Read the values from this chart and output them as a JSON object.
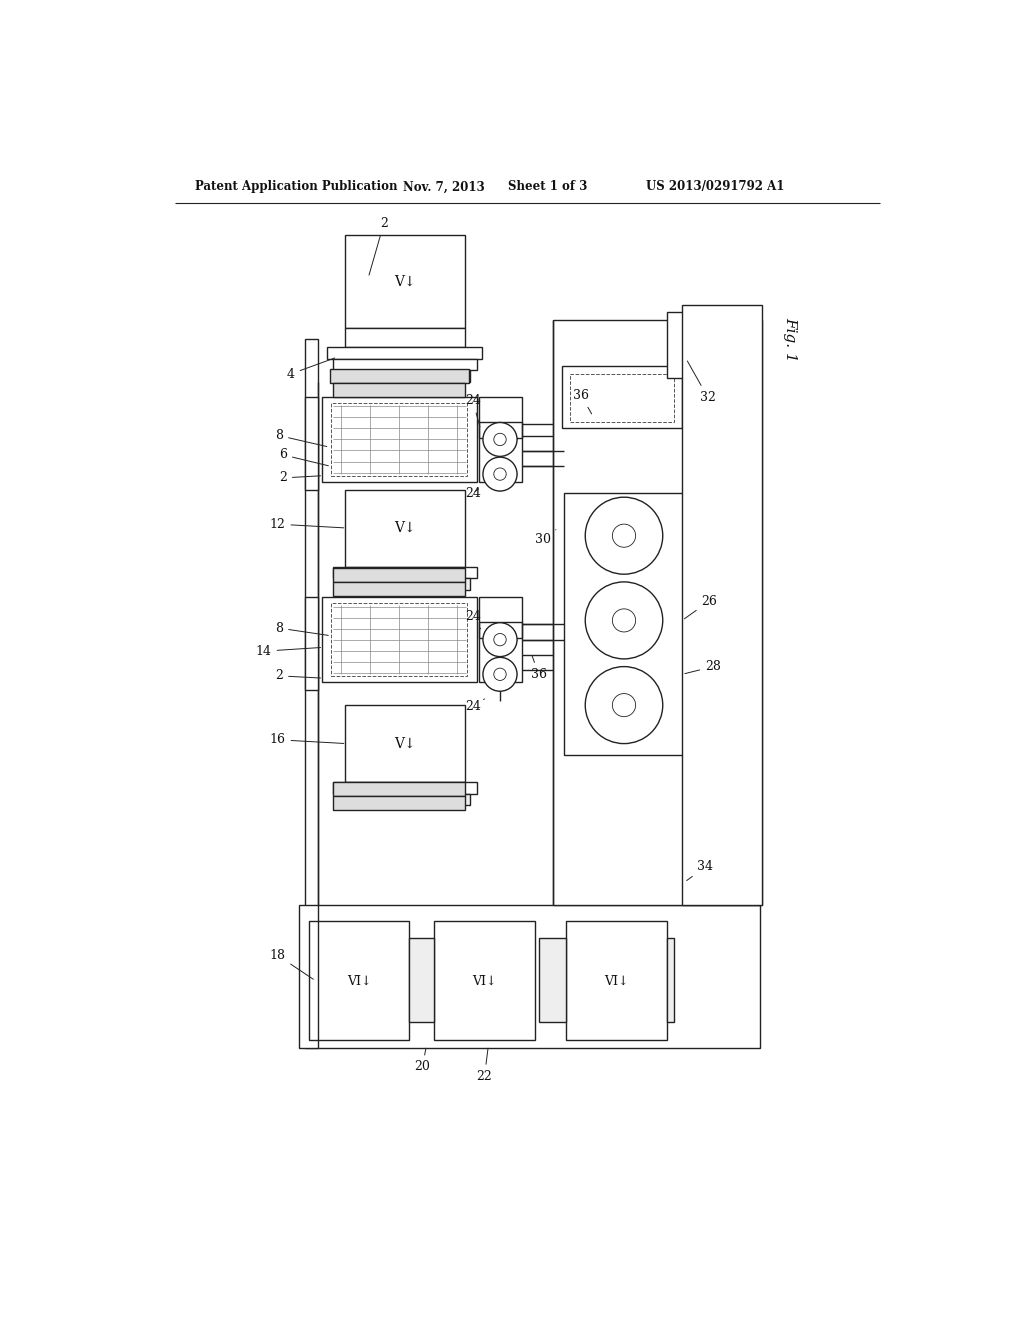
{
  "title_header": "Patent Application Publication",
  "date_header": "Nov. 7, 2013",
  "sheet_header": "Sheet 1 of 3",
  "patent_number": "US 2013/0291792 A1",
  "fig_label": "Fig. 1",
  "background": "#ffffff",
  "line_color": "#222222",
  "lw": 1.0
}
